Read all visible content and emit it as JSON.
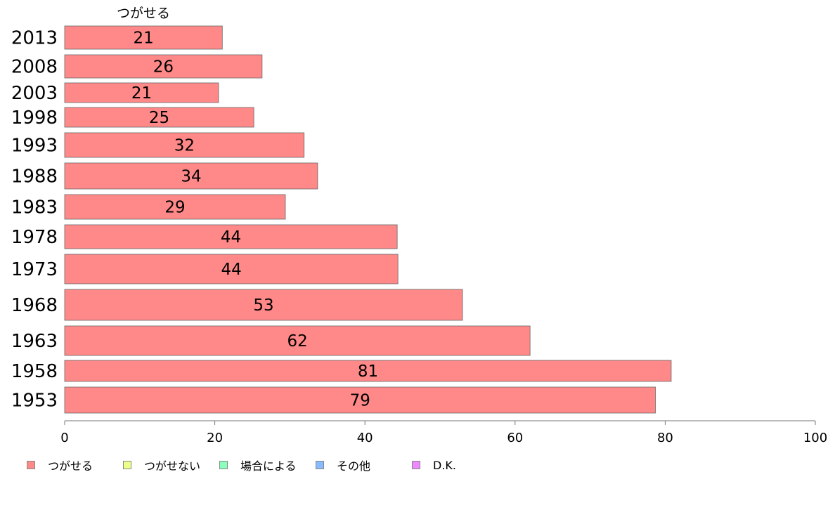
{
  "chart_data": {
    "type": "bar",
    "orientation": "horizontal",
    "title": "つがせる",
    "categories": [
      "2013",
      "2008",
      "2003",
      "1998",
      "1993",
      "1988",
      "1983",
      "1978",
      "1973",
      "1968",
      "1963",
      "1958",
      "1953"
    ],
    "series": [
      {
        "name": "つがせる",
        "values": [
          21,
          26,
          21,
          25,
          32,
          34,
          29,
          44,
          44,
          53,
          62,
          81,
          79
        ]
      }
    ],
    "precise_values": [
      21.0,
      26.3,
      20.5,
      25.2,
      31.9,
      33.7,
      29.4,
      44.3,
      44.4,
      53.0,
      62.0,
      80.8,
      78.7
    ],
    "xlim": [
      0,
      100
    ],
    "xticks": [
      0,
      20,
      40,
      60,
      80,
      100
    ],
    "xlabel": "",
    "ylabel": "",
    "grid": false,
    "legend_position": "bottom-left",
    "legend": [
      {
        "label": "つがせる",
        "color": "#ff8888"
      },
      {
        "label": "つがせない",
        "color": "#eeff88"
      },
      {
        "label": "場合による",
        "color": "#88ffbb"
      },
      {
        "label": "その他",
        "color": "#88bbff"
      },
      {
        "label": "D.K.",
        "color": "#ee88ff"
      }
    ],
    "bar_color": "#ff8888"
  }
}
